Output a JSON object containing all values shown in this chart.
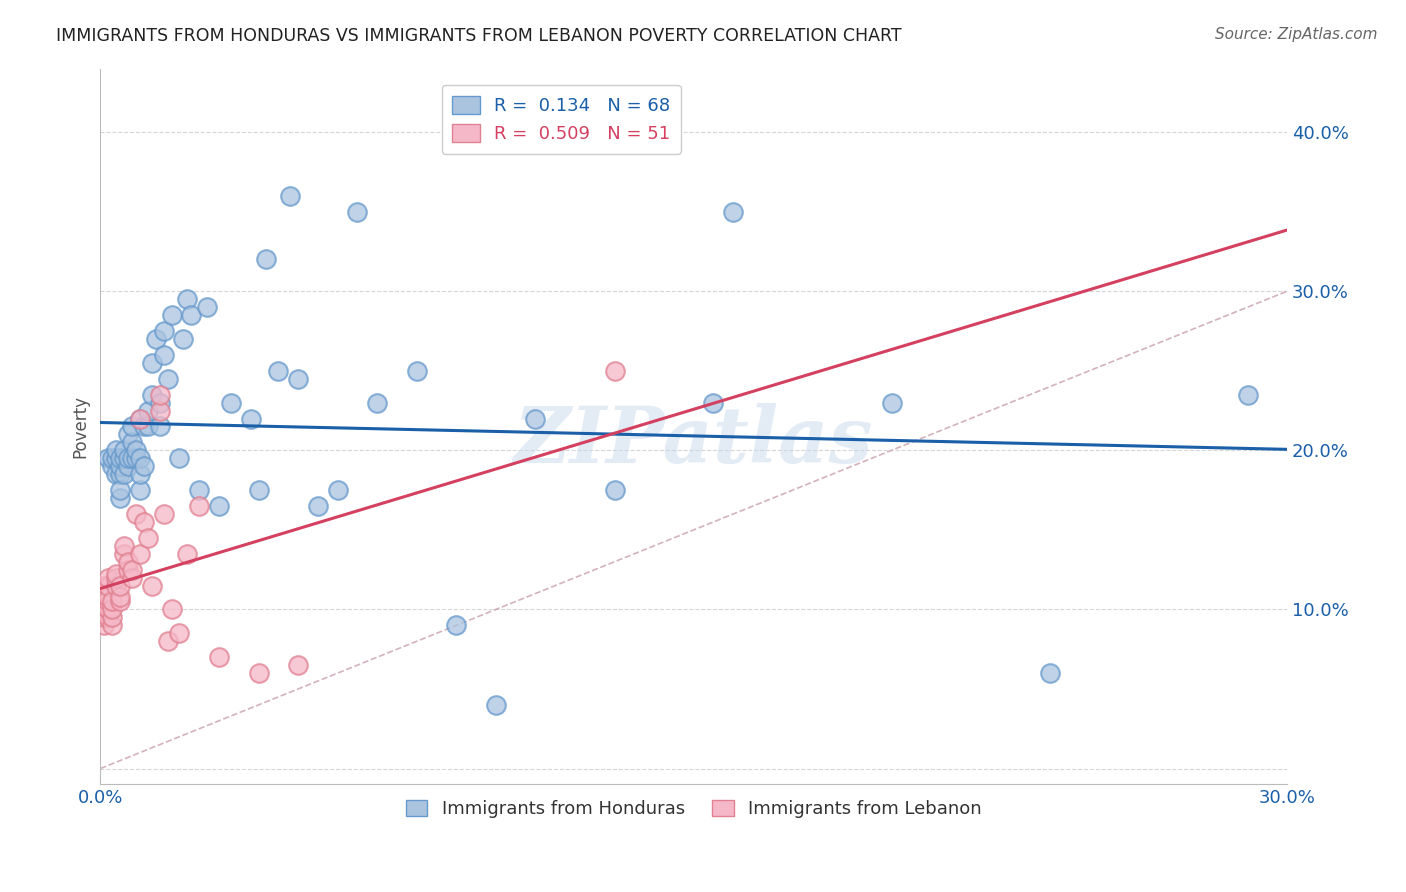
{
  "title": "IMMIGRANTS FROM HONDURAS VS IMMIGRANTS FROM LEBANON POVERTY CORRELATION CHART",
  "source": "Source: ZipAtlas.com",
  "ylabel": "Poverty",
  "xlim": [
    0.0,
    0.3
  ],
  "ylim": [
    -0.01,
    0.44
  ],
  "blue_color": "#aac4e0",
  "blue_edge": "#6699cc",
  "pink_color": "#f5b8c8",
  "pink_edge": "#e08090",
  "trend_blue": "#1a5fa8",
  "trend_pink": "#d44060",
  "diag_color": "#c8a0a8",
  "honduras_x": [
    0.002,
    0.003,
    0.003,
    0.004,
    0.004,
    0.004,
    0.005,
    0.005,
    0.005,
    0.005,
    0.005,
    0.006,
    0.006,
    0.006,
    0.007,
    0.007,
    0.007,
    0.008,
    0.008,
    0.008,
    0.009,
    0.009,
    0.01,
    0.01,
    0.01,
    0.01,
    0.011,
    0.011,
    0.012,
    0.012,
    0.013,
    0.013,
    0.014,
    0.015,
    0.015,
    0.016,
    0.016,
    0.017,
    0.018,
    0.02,
    0.021,
    0.022,
    0.023,
    0.025,
    0.027,
    0.03,
    0.033,
    0.038,
    0.04,
    0.042,
    0.045,
    0.048,
    0.05,
    0.055,
    0.06,
    0.065,
    0.07,
    0.08,
    0.09,
    0.1,
    0.11,
    0.13,
    0.155,
    0.16,
    0.2,
    0.24,
    0.29
  ],
  "honduras_y": [
    0.195,
    0.19,
    0.195,
    0.185,
    0.195,
    0.2,
    0.185,
    0.19,
    0.195,
    0.17,
    0.175,
    0.185,
    0.195,
    0.2,
    0.19,
    0.195,
    0.21,
    0.195,
    0.205,
    0.215,
    0.195,
    0.2,
    0.175,
    0.185,
    0.195,
    0.22,
    0.19,
    0.215,
    0.215,
    0.225,
    0.235,
    0.255,
    0.27,
    0.215,
    0.23,
    0.26,
    0.275,
    0.245,
    0.285,
    0.195,
    0.27,
    0.295,
    0.285,
    0.175,
    0.29,
    0.165,
    0.23,
    0.22,
    0.175,
    0.32,
    0.25,
    0.36,
    0.245,
    0.165,
    0.175,
    0.35,
    0.23,
    0.25,
    0.09,
    0.04,
    0.22,
    0.175,
    0.23,
    0.35,
    0.23,
    0.06,
    0.235
  ],
  "lebanon_x": [
    0.001,
    0.001,
    0.001,
    0.001,
    0.001,
    0.001,
    0.001,
    0.001,
    0.001,
    0.001,
    0.002,
    0.002,
    0.002,
    0.002,
    0.002,
    0.002,
    0.002,
    0.003,
    0.003,
    0.003,
    0.003,
    0.004,
    0.004,
    0.004,
    0.005,
    0.005,
    0.005,
    0.006,
    0.006,
    0.007,
    0.007,
    0.008,
    0.008,
    0.009,
    0.01,
    0.01,
    0.011,
    0.012,
    0.013,
    0.015,
    0.015,
    0.016,
    0.017,
    0.018,
    0.02,
    0.022,
    0.025,
    0.03,
    0.04,
    0.05,
    0.13
  ],
  "lebanon_y": [
    0.1,
    0.1,
    0.105,
    0.108,
    0.11,
    0.11,
    0.112,
    0.115,
    0.09,
    0.095,
    0.095,
    0.1,
    0.1,
    0.105,
    0.108,
    0.115,
    0.12,
    0.09,
    0.095,
    0.1,
    0.105,
    0.115,
    0.12,
    0.122,
    0.105,
    0.108,
    0.115,
    0.135,
    0.14,
    0.125,
    0.13,
    0.12,
    0.125,
    0.16,
    0.135,
    0.22,
    0.155,
    0.145,
    0.115,
    0.225,
    0.235,
    0.16,
    0.08,
    0.1,
    0.085,
    0.135,
    0.165,
    0.07,
    0.06,
    0.065,
    0.25
  ],
  "watermark": "ZIPatlas",
  "background_color": "#ffffff",
  "grid_color": "#cccccc",
  "axis_color": "#1a5fa8",
  "title_color": "#222222",
  "source_color": "#666666"
}
